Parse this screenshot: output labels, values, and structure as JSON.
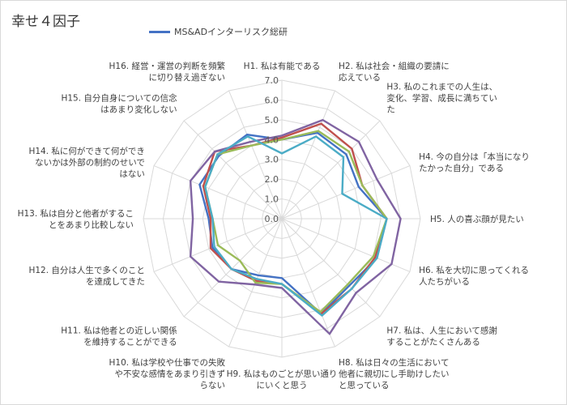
{
  "chart_data": {
    "type": "radar",
    "title": "幸せ４因子",
    "rmin": 0,
    "rmax": 7,
    "ticks": [
      "0.0",
      "1.0",
      "2.0",
      "3.0",
      "4.0",
      "5.0",
      "6.0",
      "7.0"
    ],
    "gridlines": true,
    "legend_position": "top",
    "categories": [
      [
        "H1. 私は有能である"
      ],
      [
        "H2. 私は社会・組織の要請に",
        "応えている"
      ],
      [
        "H3. 私のこれまでの人生は、",
        "変化、学習、成長に満ちてい",
        "た"
      ],
      [
        "H4. 今の自分は「本当になり",
        "たかった自分」である"
      ],
      [
        "H5. 人の喜ぶ顔が見たい"
      ],
      [
        "H6. 私を大切に思ってくれる",
        "人たちがいる"
      ],
      [
        "H7. 私は、人生において感謝",
        "することがたくさんある"
      ],
      [
        "H8. 私は日々の生活において",
        "他者に親切にし手助けしたい",
        "と思っている"
      ],
      [
        "H9. 私はものごとが思い通り",
        "にいくと思う"
      ],
      [
        "H10. 私は学校や仕事での失敗",
        "や不安な感情をあまり引きず",
        "らない"
      ],
      [
        "H11. 私は他者との近しい関係",
        "を維持することができる"
      ],
      [
        "H12. 自分は人生で多くのこと",
        "を達成してきた"
      ],
      [
        "H13. 私は自分と他者がするこ",
        "とをあまり比較しない"
      ],
      [
        "H14. 私に何ができて何ができ",
        "ないかは外部の制約のせいで",
        "はない"
      ],
      [
        "H15. 自分自身についての信念",
        "はあまり変化しない"
      ],
      [
        "H16. 経営・運営の判断を頻繁",
        "に切り替え過ぎない"
      ]
    ],
    "series": [
      {
        "name": "MS&ADインターリスク総研",
        "color": "#4472C4",
        "values": [
          4.0,
          4.7,
          4.6,
          4.2,
          5.3,
          5.2,
          4.8,
          5.2,
          3.0,
          3.1,
          3.6,
          3.8,
          3.7,
          4.5,
          4.5,
          4.6
        ],
        "in_legend": true
      },
      {
        "name": "",
        "color": "#C0504D",
        "values": [
          4.1,
          5.2,
          5.0,
          4.4,
          5.3,
          5.1,
          5.0,
          5.2,
          3.3,
          3.4,
          3.6,
          3.9,
          3.6,
          4.3,
          4.8,
          4.0
        ],
        "in_legend": false
      },
      {
        "name": "",
        "color": "#9BBB59",
        "values": [
          4.0,
          4.8,
          4.8,
          4.4,
          5.3,
          5.0,
          4.7,
          5.1,
          3.3,
          3.5,
          3.0,
          3.5,
          3.5,
          4.2,
          4.6,
          4.0
        ],
        "in_legend": false
      },
      {
        "name": "",
        "color": "#8064A2",
        "values": [
          4.2,
          5.4,
          5.5,
          5.2,
          6.0,
          6.0,
          5.3,
          6.3,
          3.5,
          3.6,
          4.5,
          5.0,
          4.5,
          5.0,
          4.8,
          4.2
        ],
        "in_legend": false
      },
      {
        "name": "",
        "color": "#4BACC6",
        "values": [
          3.3,
          4.5,
          4.4,
          3.3,
          5.3,
          5.2,
          5.0,
          5.3,
          3.3,
          3.3,
          3.6,
          3.7,
          3.5,
          4.2,
          4.6,
          4.5
        ],
        "in_legend": false
      }
    ]
  }
}
